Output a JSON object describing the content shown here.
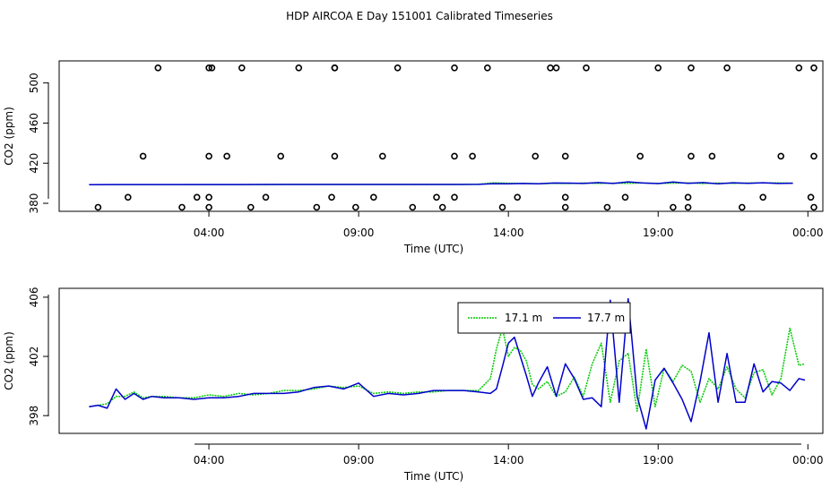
{
  "title": "HDP AIRCOA E  Day 151001  Calibrated Timeseries",
  "chart_data": [
    {
      "type": "line",
      "xlabel": "Time (UTC)",
      "ylabel": "CO2 (ppm)",
      "x_ticks": [
        "04:00",
        "09:00",
        "14:00",
        "19:00",
        "00:00"
      ],
      "x_tick_hours": [
        4,
        9,
        14,
        19,
        24
      ],
      "xlim_hours": [
        -1.0,
        24.5
      ],
      "y_ticks": [
        380,
        420,
        460,
        500
      ],
      "ylim": [
        372,
        522
      ],
      "grid": false,
      "series": [
        {
          "color": "#00cc00",
          "style": "dotted",
          "x": [
            0,
            1,
            2,
            3,
            4,
            5,
            6,
            7,
            8,
            9,
            10,
            11,
            12,
            13,
            13.5,
            14,
            14.5,
            15,
            15.5,
            16,
            16.5,
            17,
            17.5,
            18,
            18.5,
            19,
            19.5,
            20,
            20.5,
            21,
            21.5,
            22,
            22.5,
            23,
            23.5
          ],
          "values": [
            398.5,
            398.6,
            398.6,
            398.6,
            398.7,
            398.7,
            398.7,
            398.8,
            398.8,
            398.8,
            398.8,
            398.8,
            398.8,
            398.9,
            400.5,
            400,
            399.8,
            399.5,
            399.9,
            399.7,
            400.2,
            399.8,
            400.1,
            399.9,
            400.3,
            399.8,
            400,
            400.4,
            399.7,
            400.1,
            399.9,
            400.2,
            400.4,
            400.3,
            400.1
          ]
        },
        {
          "color": "#0000cc",
          "style": "solid",
          "x": [
            0,
            1,
            2,
            3,
            4,
            5,
            6,
            7,
            8,
            9,
            10,
            11,
            12,
            13,
            13.5,
            14,
            14.5,
            15,
            15.5,
            16,
            16.5,
            17,
            17.5,
            18,
            18.5,
            19,
            19.5,
            20,
            20.5,
            21,
            21.5,
            22,
            22.5,
            23,
            23.5
          ],
          "values": [
            398.6,
            398.7,
            398.7,
            398.7,
            398.7,
            398.7,
            398.8,
            398.8,
            398.8,
            398.8,
            398.8,
            398.8,
            398.8,
            398.9,
            399.6,
            399.4,
            399.8,
            399.5,
            400.2,
            400.1,
            399.8,
            400.7,
            399.8,
            401.4,
            400.2,
            399.7,
            401.2,
            399.9,
            400.7,
            399.4,
            400.5,
            399.9,
            400.5,
            399.8,
            400
          ]
        }
      ],
      "markers": {
        "style": "open-circle",
        "x": [
          0.3,
          1.3,
          1.8,
          2.3,
          3.1,
          3.6,
          4.0,
          4.0,
          4.0,
          4.0,
          4.1,
          4.6,
          5.1,
          5.4,
          5.9,
          6.4,
          7.0,
          7.6,
          8.1,
          8.2,
          8.2,
          8.2,
          8.9,
          9.5,
          9.8,
          10.3,
          10.8,
          11.6,
          11.8,
          12.2,
          12.2,
          12.2,
          12.8,
          13.3,
          13.8,
          14.3,
          14.9,
          15.4,
          15.6,
          15.9,
          15.9,
          15.9,
          16.6,
          17.3,
          17.9,
          18.4,
          19.0,
          19.5,
          20.0,
          20.0,
          20.1,
          20.1,
          20.8,
          21.3,
          21.8,
          22.5,
          23.1,
          23.7,
          24.1,
          24.2,
          24.2,
          24.2
        ],
        "values": [
          376,
          386,
          427,
          515,
          376,
          386,
          386,
          376,
          427,
          515,
          515,
          427,
          515,
          376,
          386,
          427,
          515,
          376,
          386,
          427,
          515,
          515,
          376,
          386,
          427,
          515,
          376,
          386,
          376,
          386,
          427,
          515,
          427,
          515,
          376,
          386,
          427,
          515,
          515,
          376,
          386,
          427,
          515,
          376,
          386,
          427,
          515,
          376,
          386,
          376,
          427,
          515,
          427,
          515,
          376,
          386,
          427,
          515,
          386,
          376,
          427,
          515
        ]
      }
    },
    {
      "type": "line",
      "xlabel": "Time (UTC)",
      "ylabel": "CO2 (ppm)",
      "x_ticks": [
        "04:00",
        "09:00",
        "14:00",
        "19:00",
        "00:00"
      ],
      "x_tick_hours": [
        4,
        9,
        14,
        19,
        24
      ],
      "xlim_hours": [
        -1.0,
        24.5
      ],
      "y_ticks": [
        398,
        402,
        406
      ],
      "ylim": [
        396.8,
        406.6
      ],
      "grid": false,
      "legend": {
        "placement": "top-right",
        "entries": [
          "17.1 m",
          "17.7 m"
        ]
      },
      "series": [
        {
          "name": "17.1 m",
          "color": "#00cc00",
          "style": "dotted",
          "x": [
            0,
            0.3,
            0.6,
            0.9,
            1.2,
            1.5,
            1.8,
            2.1,
            2.5,
            3,
            3.5,
            4,
            4.5,
            5,
            5.5,
            6,
            6.5,
            7,
            7.5,
            8,
            8.5,
            9,
            9.5,
            10,
            10.5,
            11,
            11.5,
            12,
            12.5,
            13,
            13.4,
            13.6,
            13.8,
            14,
            14.2,
            14.4,
            14.6,
            14.8,
            15,
            15.3,
            15.6,
            15.9,
            16.2,
            16.5,
            16.8,
            17.1,
            17.4,
            17.7,
            18,
            18.3,
            18.6,
            18.9,
            19.2,
            19.5,
            19.8,
            20.1,
            20.4,
            20.7,
            21,
            21.3,
            21.6,
            21.9,
            22.2,
            22.5,
            22.8,
            23.1,
            23.4,
            23.7,
            23.9
          ],
          "values": [
            398.6,
            398.7,
            398.8,
            399.3,
            399.3,
            399.6,
            399.2,
            399.3,
            399.3,
            399.2,
            399.2,
            399.4,
            399.3,
            399.5,
            399.4,
            399.5,
            399.7,
            399.7,
            399.8,
            400.0,
            399.9,
            400.0,
            399.5,
            399.6,
            399.5,
            399.6,
            399.6,
            399.7,
            399.7,
            399.7,
            400.5,
            402.5,
            403.9,
            402.0,
            402.6,
            402.4,
            401.7,
            400.1,
            399.8,
            400.3,
            399.3,
            399.6,
            400.6,
            399.3,
            401.5,
            402.9,
            398.9,
            401.7,
            402.2,
            398.3,
            402.5,
            398.6,
            401.2,
            400.3,
            401.4,
            401.0,
            398.9,
            400.5,
            399.8,
            401.3,
            399.8,
            399.2,
            400.9,
            401.1,
            399.4,
            400.5,
            403.9,
            401.4,
            401.5
          ]
        },
        {
          "name": "17.7 m",
          "color": "#0000cc",
          "style": "solid",
          "x": [
            0,
            0.3,
            0.6,
            0.9,
            1.2,
            1.5,
            1.8,
            2.1,
            2.5,
            3,
            3.5,
            4,
            4.5,
            5,
            5.5,
            6,
            6.5,
            7,
            7.5,
            8,
            8.5,
            9,
            9.5,
            10,
            10.5,
            11,
            11.5,
            12,
            12.5,
            13,
            13.4,
            13.6,
            13.8,
            14,
            14.2,
            14.4,
            14.6,
            14.8,
            15,
            15.3,
            15.6,
            15.9,
            16.2,
            16.5,
            16.8,
            17.1,
            17.4,
            17.7,
            18,
            18.3,
            18.6,
            18.9,
            19.2,
            19.5,
            19.8,
            20.1,
            20.4,
            20.7,
            21,
            21.3,
            21.6,
            21.9,
            22.2,
            22.5,
            22.8,
            23.1,
            23.4,
            23.7,
            23.9
          ],
          "values": [
            398.6,
            398.7,
            398.5,
            399.8,
            399.1,
            399.5,
            399.1,
            399.3,
            399.2,
            399.2,
            399.1,
            399.2,
            399.2,
            399.3,
            399.5,
            399.5,
            399.5,
            399.6,
            399.9,
            400.0,
            399.8,
            400.2,
            399.3,
            399.5,
            399.4,
            399.5,
            399.7,
            399.7,
            399.7,
            399.6,
            399.5,
            399.8,
            401.3,
            402.9,
            403.3,
            402.0,
            400.7,
            399.3,
            400.2,
            401.3,
            399.3,
            401.5,
            400.5,
            399.1,
            399.2,
            398.6,
            405.8,
            398.9,
            405.9,
            399.3,
            397.1,
            400.4,
            401.2,
            400.2,
            399.1,
            397.6,
            400.3,
            403.6,
            398.9,
            402.2,
            398.9,
            398.9,
            401.5,
            399.6,
            400.3,
            400.2,
            399.7,
            400.5,
            400.4
          ]
        }
      ]
    }
  ]
}
